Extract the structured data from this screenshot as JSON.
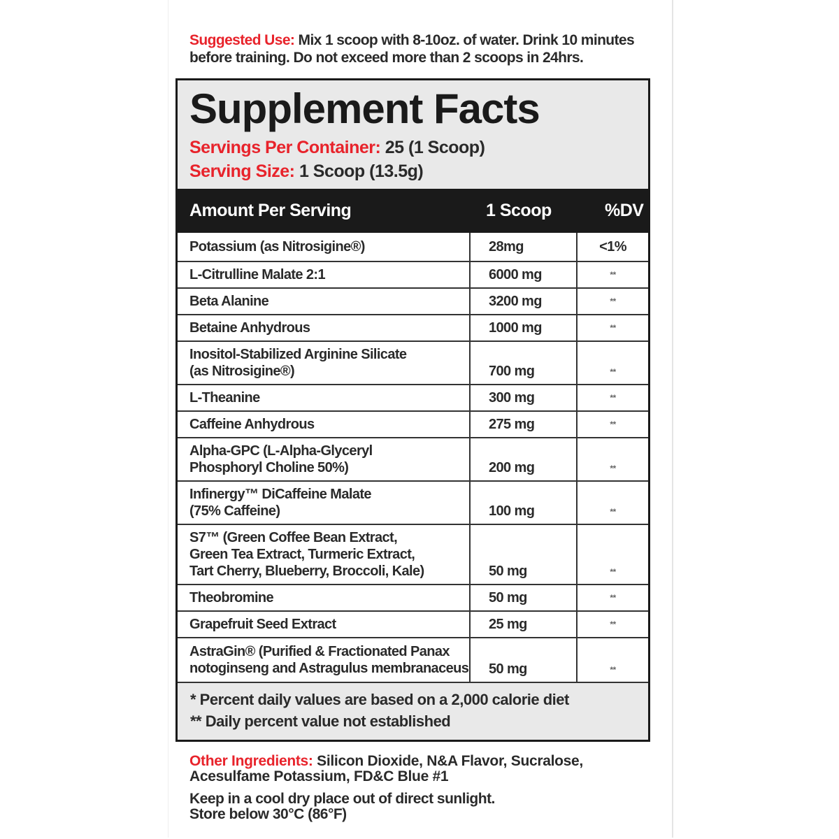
{
  "suggested_use": {
    "label": "Suggested Use:",
    "text": " Mix 1 scoop with 8-10oz. of water. Drink 10 minutes before training. Do not exceed more than 2 scoops in 24hrs."
  },
  "facts": {
    "title": "Supplement Facts",
    "servings_label": "Servings Per Container:",
    "servings_value": " 25 (1 Scoop)",
    "size_label": "Serving Size:",
    "size_value": " 1 Scoop (13.5g)",
    "header": {
      "col1": "Amount Per Serving",
      "col2": "1 Scoop",
      "col3": "%DV"
    },
    "rows": [
      {
        "name": [
          "Potassium (as Nitrosigine®)"
        ],
        "amount": "28mg",
        "dv": "<1%"
      },
      {
        "name": [
          "L-Citrulline Malate 2:1"
        ],
        "amount": "6000 mg",
        "dv": "**"
      },
      {
        "name": [
          "Beta Alanine"
        ],
        "amount": "3200 mg",
        "dv": "**"
      },
      {
        "name": [
          "Betaine Anhydrous"
        ],
        "amount": "1000 mg",
        "dv": "**"
      },
      {
        "name": [
          "Inositol-Stabilized Arginine Silicate",
          "(as Nitrosigine®)"
        ],
        "amount": "700 mg",
        "dv": "**"
      },
      {
        "name": [
          "L-Theanine"
        ],
        "amount": "300 mg",
        "dv": "**"
      },
      {
        "name": [
          "Caffeine Anhydrous"
        ],
        "amount": "275 mg",
        "dv": "**"
      },
      {
        "name": [
          "Alpha-GPC (L-Alpha-Glyceryl",
          "Phosphoryl Choline 50%)"
        ],
        "amount": "200 mg",
        "dv": "**"
      },
      {
        "name": [
          "Infinergy™ DiCaffeine Malate",
          "(75% Caffeine)"
        ],
        "amount": "100 mg",
        "dv": "**"
      },
      {
        "name": [
          "S7™ (Green Coffee Bean Extract,",
          "Green Tea Extract, Turmeric Extract,",
          "Tart Cherry, Blueberry, Broccoli, Kale)"
        ],
        "amount": "50 mg",
        "dv": "**"
      },
      {
        "name": [
          "Theobromine"
        ],
        "amount": "50 mg",
        "dv": "**"
      },
      {
        "name": [
          "Grapefruit Seed Extract"
        ],
        "amount": "25 mg",
        "dv": "**"
      },
      {
        "name": [
          "AstraGin® (Purified & Fractionated Panax",
          "notoginseng and Astragulus membranaceus"
        ],
        "amount": "50 mg",
        "dv": "**"
      }
    ],
    "footnotes": [
      "* Percent daily values are based on a 2,000 calorie diet",
      "** Daily percent value not established"
    ]
  },
  "other_ingredients": {
    "label": "Other Ingredients:",
    "text": " Silicon Dioxide, N&A Flavor, Sucralose, Acesulfame Potassium, FD&C Blue #1"
  },
  "storage": [
    "Keep in a cool dry place out of direct sunlight.",
    "Store below 30°C (86°F)"
  ],
  "colors": {
    "accent": "#e8232b",
    "header_bg": "#1a1a1a",
    "panel_bg": "#e9e9e9"
  }
}
